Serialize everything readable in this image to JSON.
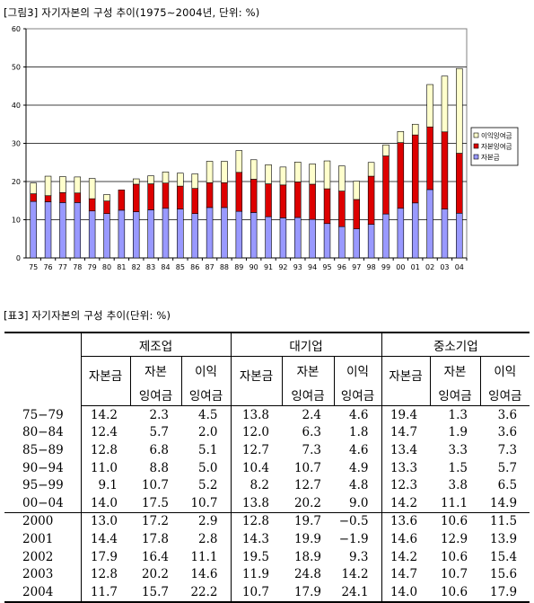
{
  "figure": {
    "title": "[그림3] 자기자본의 구성 추이(1975∼2004년, 단위: %)"
  },
  "chart_data": {
    "type": "bar",
    "stacked": true,
    "categories": [
      "75",
      "76",
      "77",
      "78",
      "79",
      "80",
      "81",
      "82",
      "83",
      "84",
      "85",
      "86",
      "87",
      "88",
      "89",
      "90",
      "91",
      "92",
      "93",
      "94",
      "95",
      "96",
      "97",
      "98",
      "99",
      "00",
      "01",
      "02",
      "03",
      "04"
    ],
    "series": [
      {
        "name": "자본금",
        "color": "#9999ff",
        "values": [
          14.8,
          14.7,
          14.5,
          14.5,
          12.3,
          11.6,
          12.5,
          12.1,
          12.6,
          13.0,
          12.8,
          11.6,
          13.2,
          13.2,
          12.2,
          11.9,
          10.8,
          10.5,
          10.6,
          10.1,
          9.0,
          8.2,
          7.6,
          8.8,
          11.5,
          13.0,
          14.4,
          17.9,
          12.8,
          11.7
        ]
      },
      {
        "name": "자본잉여금",
        "color": "#dd0000",
        "values": [
          2.0,
          1.6,
          2.6,
          2.5,
          3.2,
          3.3,
          5.3,
          7.2,
          6.8,
          6.6,
          6.0,
          6.6,
          6.5,
          6.5,
          10.2,
          8.7,
          8.6,
          8.6,
          9.3,
          9.2,
          9.1,
          9.3,
          7.7,
          12.6,
          15.2,
          17.2,
          17.8,
          16.4,
          20.2,
          15.7
        ]
      },
      {
        "name": "이익잉여금",
        "color": "#ffffcc",
        "values": [
          2.8,
          5.1,
          4.2,
          4.2,
          5.3,
          1.7,
          0.0,
          1.4,
          2.1,
          2.9,
          3.4,
          3.8,
          5.6,
          5.6,
          5.7,
          5.1,
          5.0,
          4.7,
          5.2,
          5.3,
          7.3,
          6.6,
          4.8,
          3.6,
          2.9,
          2.9,
          2.8,
          11.1,
          14.6,
          22.2
        ]
      }
    ],
    "ylim": [
      0,
      60
    ],
    "yticks": [
      0,
      10,
      20,
      30,
      40,
      50,
      60
    ],
    "legend_position": "right",
    "legend_order": [
      "이익잉여금",
      "자본잉여금",
      "자본금"
    ]
  },
  "table": {
    "title": "[표3] 자기자본의 구성 추이(단위: %)",
    "groups": [
      "제조업",
      "대기업",
      "중소기업"
    ],
    "subheaders": [
      {
        "top": "자본금",
        "bottom": ""
      },
      {
        "top": "자본",
        "bottom": "잉여금"
      },
      {
        "top": "이익",
        "bottom": "잉여금"
      }
    ],
    "block1": [
      {
        "label": "75−79",
        "values": [
          "14.2",
          "2.3",
          "4.5",
          "13.8",
          "2.4",
          "4.6",
          "19.4",
          "1.3",
          "3.6"
        ]
      },
      {
        "label": "80−84",
        "values": [
          "12.4",
          "5.7",
          "2.0",
          "12.0",
          "6.3",
          "1.8",
          "14.7",
          "1.9",
          "3.6"
        ]
      },
      {
        "label": "85−89",
        "values": [
          "12.8",
          "6.8",
          "5.1",
          "12.7",
          "7.3",
          "4.6",
          "13.4",
          "3.3",
          "7.3"
        ]
      },
      {
        "label": "90−94",
        "values": [
          "11.0",
          "8.8",
          "5.0",
          "10.4",
          "10.7",
          "4.9",
          "13.3",
          "1.5",
          "5.7"
        ]
      },
      {
        "label": "95−99",
        "values": [
          "9.1",
          "10.7",
          "5.2",
          "8.2",
          "12.7",
          "4.8",
          "12.3",
          "3.8",
          "6.5"
        ]
      },
      {
        "label": "00−04",
        "values": [
          "14.0",
          "17.5",
          "10.7",
          "13.8",
          "20.2",
          "9.0",
          "14.2",
          "11.1",
          "14.9"
        ]
      }
    ],
    "block2": [
      {
        "label": "2000",
        "values": [
          "13.0",
          "17.2",
          "2.9",
          "12.8",
          "19.7",
          "−0.5",
          "13.6",
          "10.6",
          "11.5"
        ]
      },
      {
        "label": "2001",
        "values": [
          "14.4",
          "17.8",
          "2.8",
          "14.3",
          "19.9",
          "−1.9",
          "14.6",
          "12.9",
          "13.9"
        ]
      },
      {
        "label": "2002",
        "values": [
          "17.9",
          "16.4",
          "11.1",
          "19.5",
          "18.9",
          "9.3",
          "14.2",
          "10.6",
          "15.4"
        ]
      },
      {
        "label": "2003",
        "values": [
          "12.8",
          "20.2",
          "14.6",
          "11.9",
          "24.8",
          "14.2",
          "14.7",
          "10.7",
          "15.6"
        ]
      },
      {
        "label": "2004",
        "values": [
          "11.7",
          "15.7",
          "22.2",
          "10.7",
          "17.9",
          "24.1",
          "14.0",
          "10.6",
          "17.9"
        ]
      }
    ]
  }
}
